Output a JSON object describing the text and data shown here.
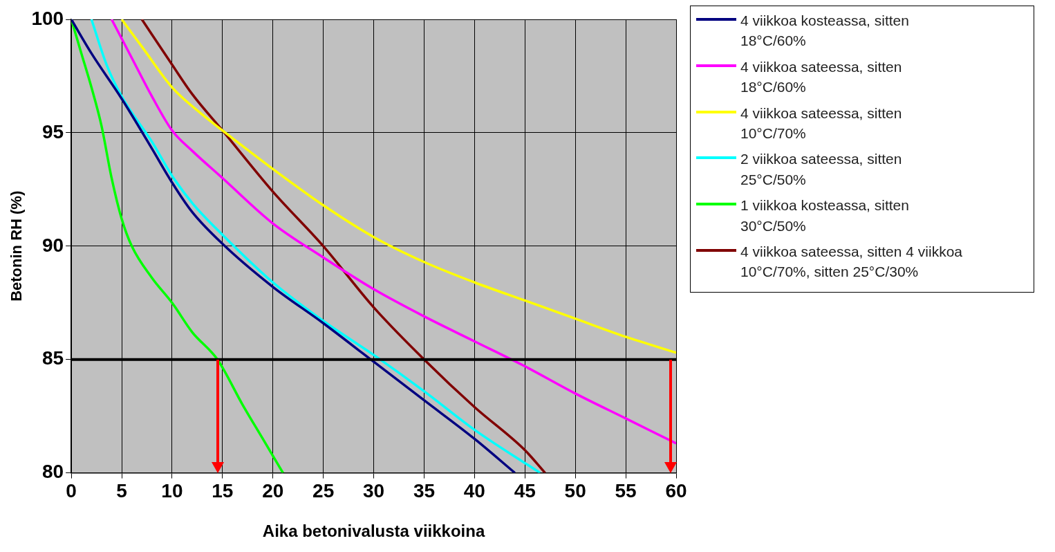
{
  "chart_data": {
    "type": "line",
    "xlabel": "Aika betonivalusta viikkoina",
    "ylabel": "Betonin RH (%)",
    "xlim": [
      0,
      60
    ],
    "xticks": [
      0,
      5,
      10,
      15,
      20,
      25,
      30,
      35,
      40,
      45,
      50,
      55,
      60
    ],
    "ylim": [
      80,
      100
    ],
    "yticks": [
      80,
      85,
      90,
      95,
      100
    ],
    "grid": true,
    "legend": "right",
    "marker": "none",
    "line_style": "solid",
    "ref_lines": [
      {
        "axis": "y",
        "value": 85,
        "color": "#000000"
      }
    ],
    "series": [
      {
        "name": "4 viikkoa kosteassa, sitten 18°C/60%",
        "color": "#000080",
        "x": [
          0,
          2,
          5,
          8,
          10,
          12,
          15,
          20,
          25,
          30,
          35,
          40,
          44
        ],
        "values": [
          100,
          98.5,
          96.5,
          94.3,
          92.8,
          91.5,
          90.1,
          88.2,
          86.6,
          84.9,
          83.2,
          81.5,
          80
        ]
      },
      {
        "name": "4 viikkoa sateessa, sitten 18°C/60%",
        "color": "#ff00ff",
        "x": [
          4,
          6,
          8,
          10,
          12,
          15,
          20,
          25,
          30,
          35,
          40,
          45,
          50,
          55,
          60
        ],
        "values": [
          100,
          98.3,
          96.6,
          95.1,
          94.2,
          93,
          91,
          89.5,
          88.1,
          86.9,
          85.8,
          84.7,
          83.5,
          82.4,
          81.3
        ]
      },
      {
        "name": "4 viikkoa sateessa, sitten 10°C/70%",
        "color": "#ffff00",
        "x": [
          5,
          7,
          10,
          13,
          15,
          20,
          25,
          30,
          35,
          40,
          45,
          50,
          55,
          60
        ],
        "values": [
          100,
          98.8,
          97,
          95.8,
          95.1,
          93.4,
          91.8,
          90.4,
          89.3,
          88.4,
          87.6,
          86.8,
          86,
          85.3
        ]
      },
      {
        "name": "2 viikkoa sateessa, sitten 25°C/50%",
        "color": "#00ffff",
        "x": [
          2,
          3.5,
          5,
          8,
          10,
          12,
          15,
          20,
          25,
          30,
          35,
          40,
          46.5
        ],
        "values": [
          100,
          98,
          96.6,
          94.6,
          93.1,
          91.9,
          90.5,
          88.4,
          86.7,
          85.2,
          83.6,
          81.9,
          80
        ]
      },
      {
        "name": "1 viikkoa kosteassa, sitten 30°C/50%",
        "color": "#00ff00",
        "x": [
          0,
          1,
          2,
          3,
          4,
          5,
          6,
          8,
          10,
          12,
          14.5,
          17,
          19,
          21
        ],
        "values": [
          100,
          98.5,
          97,
          95.3,
          93,
          91.2,
          90,
          88.6,
          87.5,
          86.2,
          85,
          83,
          81.5,
          80
        ]
      },
      {
        "name": "4 viikkoa sateessa, sitten 4 viikkoa 10°C/70%, sitten 25°C/30%",
        "color": "#800000",
        "x": [
          7,
          10,
          12,
          15,
          20,
          25,
          30,
          35,
          40,
          45,
          47
        ],
        "values": [
          100,
          98,
          96.7,
          95.1,
          92.4,
          90,
          87.3,
          85,
          82.9,
          81,
          80
        ]
      }
    ]
  }
}
